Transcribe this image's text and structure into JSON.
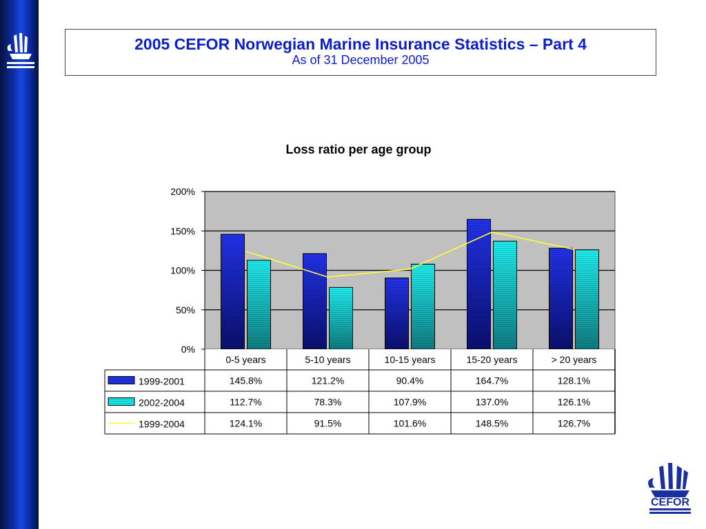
{
  "header": {
    "title": "2005 CEFOR Norwegian Marine Insurance Statistics – Part 4",
    "subtitle": "As of 31 December 2005"
  },
  "logo": {
    "text": "CEFOR",
    "color": "#1a2fa0"
  },
  "colors": {
    "sidebar": "#0b2ea8",
    "title": "#0b1ec9",
    "plot_bg": "#c0c0c0",
    "series_1999_2001": "#1f33e0",
    "series_2002_2004": "#19e6ea",
    "series_1999_2004": "#ffff33"
  },
  "chart_data": {
    "type": "bar",
    "title": "Loss ratio per age group",
    "categories": [
      "0-5 years",
      "5-10 years",
      "10-15 years",
      "15-20 years",
      "> 20 years"
    ],
    "series": [
      {
        "name": "1999-2001",
        "kind": "bar",
        "values": [
          145.8,
          121.2,
          90.4,
          164.7,
          128.1
        ],
        "labels": [
          "145.8%",
          "121.2%",
          "90.4%",
          "164.7%",
          "128.1%"
        ]
      },
      {
        "name": "2002-2004",
        "kind": "bar",
        "values": [
          112.7,
          78.3,
          107.9,
          137.0,
          126.1
        ],
        "labels": [
          "112.7%",
          "78.3%",
          "107.9%",
          "137.0%",
          "126.1%"
        ]
      },
      {
        "name": "1999-2004",
        "kind": "line",
        "values": [
          124.1,
          91.5,
          101.6,
          148.5,
          126.7
        ],
        "labels": [
          "124.1%",
          "91.5%",
          "101.6%",
          "148.5%",
          "126.7%"
        ]
      }
    ],
    "y_ticks": [
      "0%",
      "50%",
      "100%",
      "150%",
      "200%"
    ],
    "ylim": [
      0,
      200
    ],
    "grid": true,
    "legend": "data-table"
  }
}
